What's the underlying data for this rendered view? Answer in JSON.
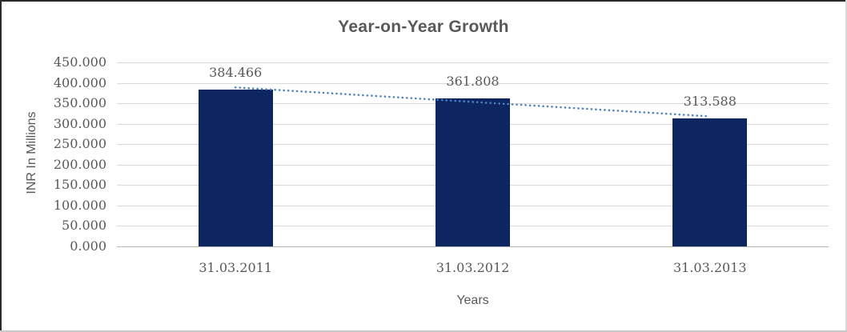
{
  "chart_data": {
    "type": "bar",
    "title": "Year-on-Year Growth",
    "categories": [
      "31.03.2011",
      "31.03.2012",
      "31.03.2013"
    ],
    "values": [
      384.466,
      361.808,
      313.588
    ],
    "value_labels": [
      "384.466",
      "361.808",
      "313.588"
    ],
    "xlabel": "Years",
    "ylabel": "INR In Millions",
    "ylim": [
      0,
      450
    ],
    "ytick_step": 50,
    "ytick_decimals": 3,
    "grid": true,
    "legend": false,
    "trendline": {
      "type": "linear",
      "style": "round-dot"
    },
    "colors": {
      "bar": "#0d2561",
      "trendline": "#4d82c3",
      "gridline": "#d9d9d9",
      "axis_line": "#b3b3b3",
      "label_text": "#595959",
      "title_text": "#595959"
    }
  }
}
